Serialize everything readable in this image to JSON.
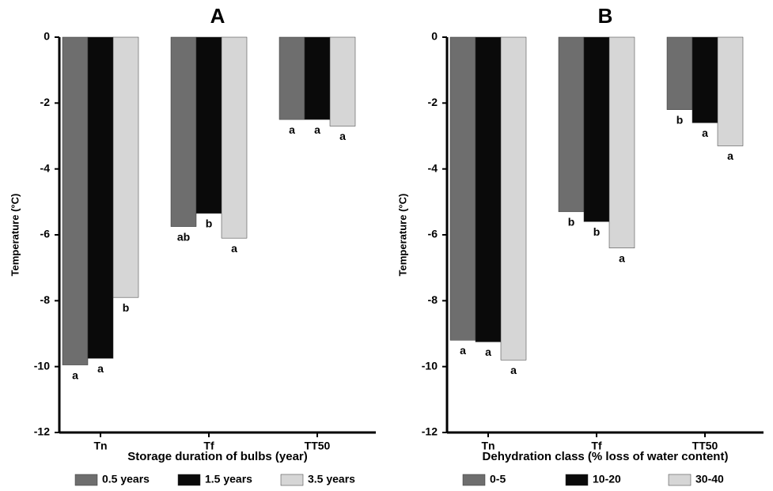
{
  "chart_data": [
    {
      "type": "bar",
      "title": "A",
      "x_label": "Storage duration of bulbs (year)",
      "y_label": "Temperature (°C)",
      "categories": [
        "Tn",
        "Tf",
        "TT50"
      ],
      "series": [
        {
          "name": "0.5 years",
          "color": "#6e6e6e",
          "values": [
            -9.95,
            -5.75,
            -2.5
          ],
          "letters": [
            "a",
            "ab",
            "a"
          ]
        },
        {
          "name": "1.5 years",
          "color": "#0a0a0a",
          "values": [
            -9.75,
            -5.35,
            -2.5
          ],
          "letters": [
            "a",
            "b",
            "a"
          ]
        },
        {
          "name": "3.5 years",
          "color": "#d6d6d6",
          "values": [
            -7.9,
            -6.1,
            -2.7
          ],
          "letters": [
            "b",
            "a",
            "a"
          ]
        }
      ],
      "ylim": [
        -12,
        0
      ],
      "yticks": [
        0,
        -2,
        -4,
        -6,
        -8,
        -10,
        -12
      ]
    },
    {
      "type": "bar",
      "title": "B",
      "x_label": "Dehydration class (% loss of water content)",
      "y_label": "Temperature (°C)",
      "categories": [
        "Tn",
        "Tf",
        "TT50"
      ],
      "series": [
        {
          "name": "0-5",
          "color": "#6e6e6e",
          "values": [
            -9.2,
            -5.3,
            -2.2
          ],
          "letters": [
            "a",
            "b",
            "b"
          ]
        },
        {
          "name": "10-20",
          "color": "#0a0a0a",
          "values": [
            -9.25,
            -5.6,
            -2.6
          ],
          "letters": [
            "a",
            "b",
            "a"
          ]
        },
        {
          "name": "30-40",
          "color": "#d6d6d6",
          "values": [
            -9.8,
            -6.4,
            -3.3
          ],
          "letters": [
            "a",
            "a",
            "a"
          ]
        }
      ],
      "ylim": [
        -12,
        0
      ],
      "yticks": [
        0,
        -2,
        -4,
        -6,
        -8,
        -10,
        -12
      ]
    }
  ]
}
